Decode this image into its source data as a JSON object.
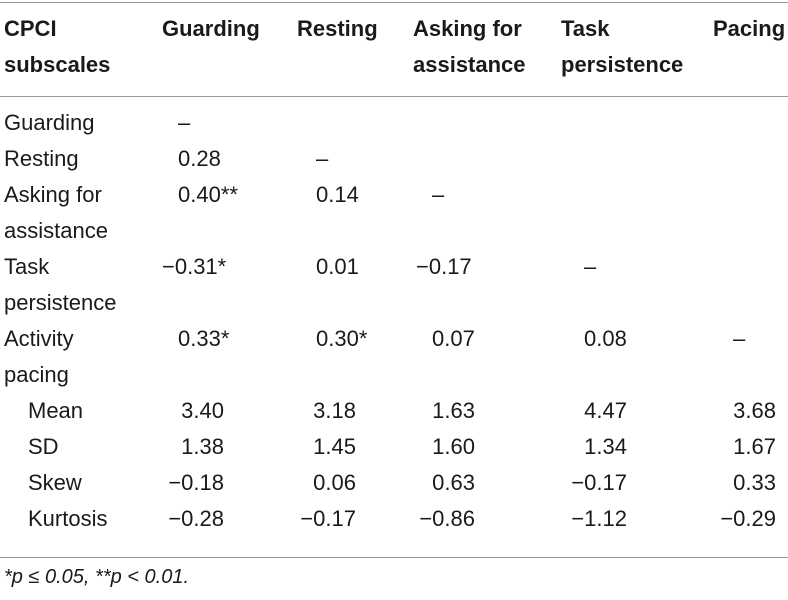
{
  "header": [
    "CPCI\nsubscales",
    "Guarding",
    "Resting",
    "Asking for\nassistance",
    "Task\npersistence",
    "Pacing"
  ],
  "rows": [
    {
      "label": "Guarding",
      "cells": [
        "–",
        "",
        "",
        "",
        ""
      ]
    },
    {
      "label": "Resting",
      "cells": [
        "0.28",
        "–",
        "",
        "",
        ""
      ]
    },
    {
      "label": "Asking for\nassistance",
      "cells": [
        "0.40**",
        "0.14",
        "–",
        "",
        ""
      ]
    },
    {
      "label": "Task\npersistence",
      "cells": [
        "−0.31*",
        "0.01",
        "−0.17",
        "–",
        ""
      ]
    },
    {
      "label": "Activity\npacing",
      "cells": [
        "0.33*",
        "0.30*",
        "0.07",
        "0.08",
        "–"
      ]
    }
  ],
  "stats": [
    {
      "label": "Mean",
      "cells": [
        "3.40",
        "3.18",
        "1.63",
        "4.47",
        "3.68"
      ]
    },
    {
      "label": "SD",
      "cells": [
        "1.38",
        "1.45",
        "1.60",
        "1.34",
        "1.67"
      ]
    },
    {
      "label": "Skew",
      "cells": [
        "−0.18",
        "0.06",
        "0.63",
        "−0.17",
        "0.33"
      ]
    },
    {
      "label": "Kurtosis",
      "cells": [
        "−0.28",
        "−0.17",
        "−0.86",
        "−1.12",
        "−0.29"
      ]
    }
  ],
  "footnote": "*p ≤ 0.05,  **p < 0.01."
}
